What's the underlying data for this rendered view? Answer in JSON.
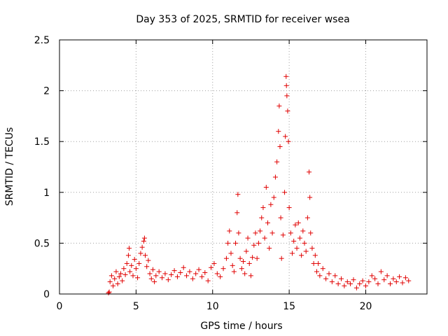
{
  "chart_data": {
    "type": "scatter",
    "title": "Day 353 of 2025, SRMTID for receiver wsea",
    "xlabel": "GPS time / hours",
    "ylabel": "SRMTID / TECUs",
    "xlim": [
      0,
      24
    ],
    "ylim": [
      0,
      2.5
    ],
    "x_ticks": [
      0,
      5,
      10,
      15,
      20
    ],
    "x_tick_labels": [
      "0",
      "5",
      "10",
      "15",
      "20"
    ],
    "y_ticks": [
      0,
      0.5,
      1,
      1.5,
      2,
      2.5
    ],
    "y_tick_labels": [
      "0",
      "0.5",
      "1",
      "1.5",
      "2",
      "2.5"
    ],
    "grid": true,
    "marker": "+",
    "series": [
      {
        "name": "SRMTID",
        "color": "#e00000",
        "points": [
          [
            3.2,
            0.01
          ],
          [
            3.25,
            0.02
          ],
          [
            3.3,
            0.12
          ],
          [
            3.4,
            0.18
          ],
          [
            3.5,
            0.08
          ],
          [
            3.6,
            0.15
          ],
          [
            3.7,
            0.22
          ],
          [
            3.8,
            0.1
          ],
          [
            3.9,
            0.17
          ],
          [
            4.0,
            0.2
          ],
          [
            4.1,
            0.13
          ],
          [
            4.2,
            0.25
          ],
          [
            4.3,
            0.19
          ],
          [
            4.4,
            0.3
          ],
          [
            4.5,
            0.38
          ],
          [
            4.55,
            0.45
          ],
          [
            4.6,
            0.22
          ],
          [
            4.7,
            0.28
          ],
          [
            4.8,
            0.18
          ],
          [
            4.9,
            0.34
          ],
          [
            5.0,
            0.25
          ],
          [
            5.1,
            0.16
          ],
          [
            5.2,
            0.3
          ],
          [
            5.3,
            0.4
          ],
          [
            5.4,
            0.46
          ],
          [
            5.5,
            0.52
          ],
          [
            5.55,
            0.55
          ],
          [
            5.6,
            0.38
          ],
          [
            5.7,
            0.27
          ],
          [
            5.8,
            0.33
          ],
          [
            5.9,
            0.2
          ],
          [
            6.0,
            0.15
          ],
          [
            6.1,
            0.24
          ],
          [
            6.2,
            0.12
          ],
          [
            6.3,
            0.18
          ],
          [
            6.5,
            0.22
          ],
          [
            6.7,
            0.16
          ],
          [
            6.9,
            0.2
          ],
          [
            7.1,
            0.14
          ],
          [
            7.3,
            0.19
          ],
          [
            7.5,
            0.23
          ],
          [
            7.7,
            0.17
          ],
          [
            7.9,
            0.21
          ],
          [
            8.1,
            0.26
          ],
          [
            8.3,
            0.18
          ],
          [
            8.5,
            0.22
          ],
          [
            8.7,
            0.15
          ],
          [
            8.9,
            0.2
          ],
          [
            9.1,
            0.24
          ],
          [
            9.3,
            0.17
          ],
          [
            9.5,
            0.21
          ],
          [
            9.7,
            0.13
          ],
          [
            9.9,
            0.26
          ],
          [
            10.1,
            0.3
          ],
          [
            10.3,
            0.2
          ],
          [
            10.5,
            0.17
          ],
          [
            10.7,
            0.25
          ],
          [
            10.9,
            0.35
          ],
          [
            11.0,
            0.5
          ],
          [
            11.1,
            0.62
          ],
          [
            11.2,
            0.4
          ],
          [
            11.3,
            0.28
          ],
          [
            11.4,
            0.22
          ],
          [
            11.5,
            0.5
          ],
          [
            11.6,
            0.8
          ],
          [
            11.65,
            0.98
          ],
          [
            11.7,
            0.6
          ],
          [
            11.8,
            0.35
          ],
          [
            11.9,
            0.25
          ],
          [
            12.0,
            0.32
          ],
          [
            12.1,
            0.2
          ],
          [
            12.2,
            0.42
          ],
          [
            12.3,
            0.55
          ],
          [
            12.4,
            0.3
          ],
          [
            12.5,
            0.18
          ],
          [
            12.6,
            0.36
          ],
          [
            12.7,
            0.48
          ],
          [
            12.8,
            0.6
          ],
          [
            12.9,
            0.35
          ],
          [
            13.0,
            0.5
          ],
          [
            13.1,
            0.62
          ],
          [
            13.2,
            0.75
          ],
          [
            13.3,
            0.85
          ],
          [
            13.4,
            0.55
          ],
          [
            13.5,
            1.05
          ],
          [
            13.6,
            0.7
          ],
          [
            13.7,
            0.45
          ],
          [
            13.8,
            0.88
          ],
          [
            13.9,
            0.6
          ],
          [
            14.0,
            0.95
          ],
          [
            14.1,
            1.15
          ],
          [
            14.2,
            1.3
          ],
          [
            14.3,
            1.6
          ],
          [
            14.35,
            1.85
          ],
          [
            14.4,
            1.45
          ],
          [
            14.45,
            0.75
          ],
          [
            14.5,
            0.35
          ],
          [
            14.6,
            0.58
          ],
          [
            14.7,
            1.0
          ],
          [
            14.75,
            1.55
          ],
          [
            14.8,
            2.14
          ],
          [
            14.82,
            2.05
          ],
          [
            14.85,
            1.95
          ],
          [
            14.9,
            1.8
          ],
          [
            14.95,
            1.5
          ],
          [
            15.0,
            0.85
          ],
          [
            15.1,
            0.6
          ],
          [
            15.2,
            0.4
          ],
          [
            15.3,
            0.52
          ],
          [
            15.4,
            0.68
          ],
          [
            15.5,
            0.45
          ],
          [
            15.6,
            0.7
          ],
          [
            15.7,
            0.55
          ],
          [
            15.8,
            0.38
          ],
          [
            15.9,
            0.62
          ],
          [
            16.0,
            0.5
          ],
          [
            16.1,
            0.42
          ],
          [
            16.2,
            0.75
          ],
          [
            16.3,
            1.2
          ],
          [
            16.35,
            0.95
          ],
          [
            16.4,
            0.6
          ],
          [
            16.5,
            0.45
          ],
          [
            16.6,
            0.3
          ],
          [
            16.7,
            0.38
          ],
          [
            16.8,
            0.22
          ],
          [
            16.9,
            0.3
          ],
          [
            17.0,
            0.18
          ],
          [
            17.2,
            0.25
          ],
          [
            17.4,
            0.15
          ],
          [
            17.6,
            0.2
          ],
          [
            17.8,
            0.12
          ],
          [
            18.0,
            0.18
          ],
          [
            18.2,
            0.1
          ],
          [
            18.4,
            0.15
          ],
          [
            18.6,
            0.08
          ],
          [
            18.8,
            0.12
          ],
          [
            19.0,
            0.1
          ],
          [
            19.2,
            0.14
          ],
          [
            19.4,
            0.06
          ],
          [
            19.6,
            0.1
          ],
          [
            19.8,
            0.13
          ],
          [
            20.0,
            0.08
          ],
          [
            20.2,
            0.12
          ],
          [
            20.4,
            0.18
          ],
          [
            20.6,
            0.15
          ],
          [
            20.8,
            0.1
          ],
          [
            21.0,
            0.22
          ],
          [
            21.2,
            0.14
          ],
          [
            21.4,
            0.18
          ],
          [
            21.6,
            0.1
          ],
          [
            21.8,
            0.15
          ],
          [
            22.0,
            0.12
          ],
          [
            22.2,
            0.17
          ],
          [
            22.4,
            0.11
          ],
          [
            22.6,
            0.16
          ],
          [
            22.8,
            0.13
          ]
        ]
      }
    ]
  }
}
